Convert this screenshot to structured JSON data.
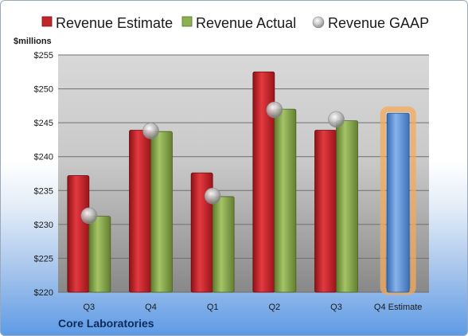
{
  "chart_data": {
    "type": "bar",
    "ylabel": "$millions",
    "ylim": [
      220,
      255
    ],
    "yticks": [
      220,
      225,
      230,
      235,
      240,
      245,
      250,
      255
    ],
    "ytick_labels": [
      "$220",
      "$225",
      "$230",
      "$235",
      "$240",
      "$245",
      "$250",
      "$255"
    ],
    "categories": [
      "Q3",
      "Q4",
      "Q1",
      "Q2",
      "Q3",
      "Q4 Estimate"
    ],
    "series": [
      {
        "name": "Revenue Estimate",
        "style": "bar",
        "color": "#c0262c",
        "values": [
          237.2,
          243.9,
          237.6,
          252.5,
          243.9,
          null
        ]
      },
      {
        "name": "Revenue Actual",
        "style": "bar",
        "color": "#86a84a",
        "values": [
          231.2,
          243.7,
          234.1,
          247.0,
          245.3,
          null
        ]
      },
      {
        "name": "Revenue GAAP",
        "style": "marker",
        "color": "#c8c8c8",
        "values": [
          231.3,
          243.8,
          234.2,
          246.9,
          245.5,
          null
        ]
      },
      {
        "name": "Q4 Estimate",
        "style": "highlight-bar",
        "color": "#5b8fd6",
        "values": [
          null,
          null,
          null,
          null,
          null,
          246.4
        ]
      }
    ],
    "grid": true,
    "legend_position": "top"
  },
  "company": "Core Laboratories"
}
